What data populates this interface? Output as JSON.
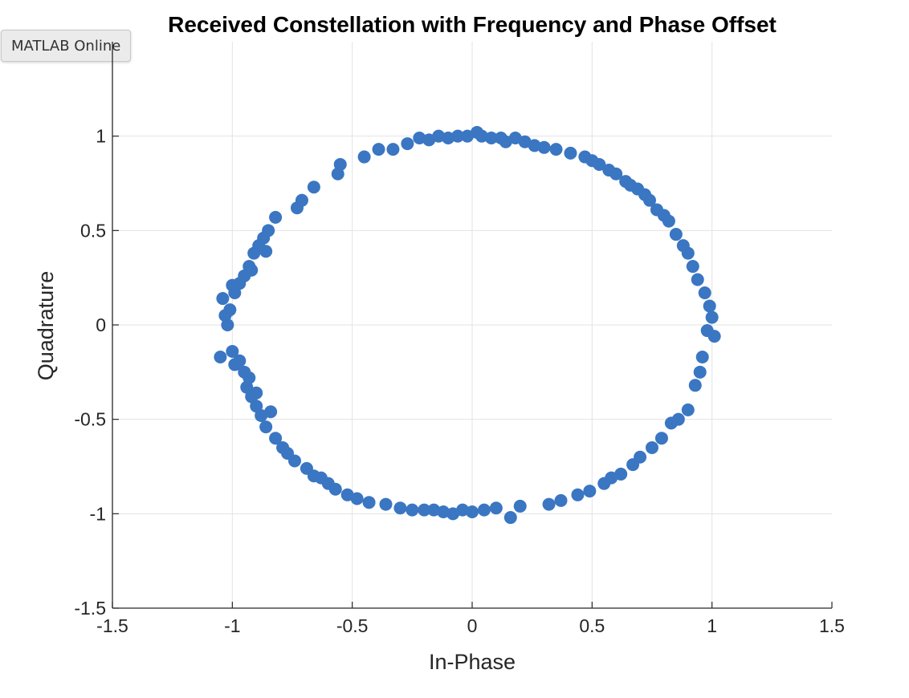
{
  "app": {
    "badge_label": "MATLAB Online"
  },
  "chart_data": {
    "type": "scatter",
    "title": "Received Constellation with Frequency and Phase Offset",
    "xlabel": "In-Phase",
    "ylabel": "Quadrature",
    "xlim": [
      -1.5,
      1.5
    ],
    "ylim": [
      -1.5,
      1.5
    ],
    "xticks": [
      -1.5,
      -1,
      -0.5,
      0,
      0.5,
      1,
      1.5
    ],
    "yticks": [
      -1.5,
      -1,
      -0.5,
      0,
      0.5,
      1
    ],
    "xtick_labels": [
      "-1.5",
      "-1",
      "-0.5",
      "0",
      "0.5",
      "1",
      "1.5"
    ],
    "ytick_labels": [
      "-1.5",
      "-1",
      "-0.5",
      "0",
      "0.5",
      "1"
    ],
    "grid": true,
    "marker_color": "#3a76c2",
    "points": [
      [
        1.0,
        0.04
      ],
      [
        0.98,
        -0.03
      ],
      [
        1.01,
        -0.06
      ],
      [
        0.99,
        0.1
      ],
      [
        0.96,
        -0.17
      ],
      [
        0.97,
        0.17
      ],
      [
        0.95,
        -0.25
      ],
      [
        0.94,
        0.24
      ],
      [
        0.93,
        -0.32
      ],
      [
        0.92,
        0.31
      ],
      [
        0.9,
        0.38
      ],
      [
        0.9,
        -0.45
      ],
      [
        0.88,
        0.42
      ],
      [
        0.86,
        -0.5
      ],
      [
        0.85,
        0.48
      ],
      [
        0.83,
        -0.52
      ],
      [
        0.82,
        0.55
      ],
      [
        0.8,
        0.58
      ],
      [
        0.79,
        -0.6
      ],
      [
        0.77,
        0.61
      ],
      [
        0.75,
        -0.65
      ],
      [
        0.74,
        0.66
      ],
      [
        0.72,
        0.69
      ],
      [
        0.7,
        -0.7
      ],
      [
        0.69,
        0.72
      ],
      [
        0.67,
        -0.74
      ],
      [
        0.66,
        0.74
      ],
      [
        0.64,
        0.76
      ],
      [
        0.62,
        -0.79
      ],
      [
        0.6,
        0.8
      ],
      [
        0.58,
        -0.81
      ],
      [
        0.57,
        0.82
      ],
      [
        0.55,
        -0.84
      ],
      [
        0.53,
        0.85
      ],
      [
        0.5,
        0.87
      ],
      [
        0.49,
        -0.88
      ],
      [
        0.47,
        0.89
      ],
      [
        0.44,
        -0.9
      ],
      [
        0.41,
        0.91
      ],
      [
        0.37,
        -0.93
      ],
      [
        0.35,
        0.93
      ],
      [
        0.32,
        -0.95
      ],
      [
        0.3,
        0.94
      ],
      [
        0.26,
        0.95
      ],
      [
        0.22,
        0.97
      ],
      [
        0.2,
        -0.96
      ],
      [
        0.18,
        0.99
      ],
      [
        0.16,
        -1.02
      ],
      [
        0.14,
        0.97
      ],
      [
        0.12,
        0.99
      ],
      [
        0.1,
        -0.97
      ],
      [
        0.08,
        0.99
      ],
      [
        0.05,
        -0.98
      ],
      [
        0.04,
        1.0
      ],
      [
        0.02,
        1.02
      ],
      [
        0.0,
        -0.99
      ],
      [
        -0.02,
        1.0
      ],
      [
        -0.04,
        -0.98
      ],
      [
        -0.06,
        1.0
      ],
      [
        -0.08,
        -1.0
      ],
      [
        -0.1,
        0.99
      ],
      [
        -0.12,
        -0.99
      ],
      [
        -0.14,
        1.0
      ],
      [
        -0.16,
        -0.98
      ],
      [
        -0.18,
        0.98
      ],
      [
        -0.2,
        -0.98
      ],
      [
        -0.22,
        0.99
      ],
      [
        -0.25,
        -0.98
      ],
      [
        -0.27,
        0.96
      ],
      [
        -0.3,
        -0.97
      ],
      [
        -0.33,
        0.93
      ],
      [
        -0.36,
        -0.95
      ],
      [
        -0.39,
        0.93
      ],
      [
        -0.43,
        -0.94
      ],
      [
        -0.45,
        0.89
      ],
      [
        -0.48,
        -0.92
      ],
      [
        -0.52,
        -0.9
      ],
      [
        -0.55,
        0.85
      ],
      [
        -0.56,
        0.8
      ],
      [
        -0.57,
        -0.87
      ],
      [
        -0.6,
        -0.84
      ],
      [
        -0.63,
        -0.81
      ],
      [
        -0.66,
        0.73
      ],
      [
        -0.66,
        -0.8
      ],
      [
        -0.69,
        -0.76
      ],
      [
        -0.71,
        0.66
      ],
      [
        -0.73,
        0.62
      ],
      [
        -0.74,
        -0.72
      ],
      [
        -0.77,
        -0.68
      ],
      [
        -0.79,
        -0.65
      ],
      [
        -0.82,
        0.57
      ],
      [
        -0.82,
        -0.6
      ],
      [
        -0.85,
        0.5
      ],
      [
        -0.86,
        -0.54
      ],
      [
        -0.87,
        0.46
      ],
      [
        -0.88,
        -0.48
      ],
      [
        -0.89,
        0.42
      ],
      [
        -0.9,
        -0.43
      ],
      [
        -0.91,
        0.38
      ],
      [
        -0.92,
        -0.38
      ],
      [
        -0.93,
        0.31
      ],
      [
        -0.94,
        -0.33
      ],
      [
        -0.95,
        0.26
      ],
      [
        -0.95,
        -0.25
      ],
      [
        -0.97,
        0.22
      ],
      [
        -0.97,
        -0.19
      ],
      [
        -0.99,
        0.17
      ],
      [
        -1.0,
        -0.14
      ],
      [
        -1.01,
        0.08
      ],
      [
        -1.02,
        0.0
      ],
      [
        -1.03,
        0.05
      ],
      [
        -1.04,
        0.14
      ],
      [
        -1.05,
        -0.17
      ],
      [
        -0.99,
        -0.21
      ],
      [
        -1.0,
        0.21
      ],
      [
        -0.93,
        -0.28
      ],
      [
        -0.92,
        0.29
      ],
      [
        -0.9,
        -0.36
      ],
      [
        -0.86,
        0.39
      ],
      [
        -0.84,
        -0.46
      ]
    ]
  }
}
